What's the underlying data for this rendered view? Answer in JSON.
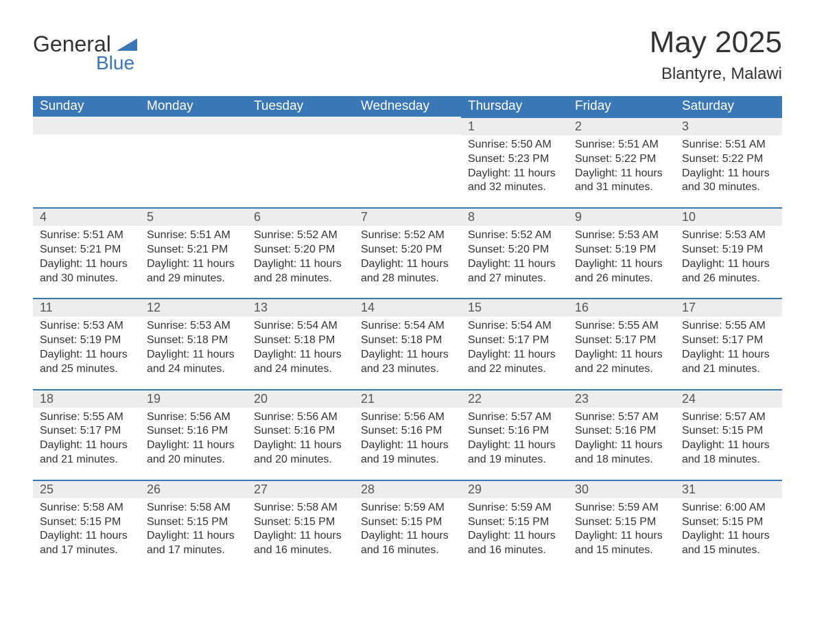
{
  "logo": {
    "primary": "General",
    "secondary": "Blue"
  },
  "title": {
    "month_year": "May 2025",
    "location": "Blantyre, Malawi"
  },
  "colors": {
    "header_bg": "#3a77b7",
    "header_fg": "#ffffff",
    "bar_bg": "#ededed",
    "bar_border": "#3a77b7",
    "text": "#333333",
    "page_bg": "#ffffff"
  },
  "days_of_week": [
    "Sunday",
    "Monday",
    "Tuesday",
    "Wednesday",
    "Thursday",
    "Friday",
    "Saturday"
  ],
  "weeks": [
    [
      null,
      null,
      null,
      null,
      {
        "n": "1",
        "sr": "Sunrise: 5:50 AM",
        "ss": "Sunset: 5:23 PM",
        "dl": "Daylight: 11 hours and 32 minutes."
      },
      {
        "n": "2",
        "sr": "Sunrise: 5:51 AM",
        "ss": "Sunset: 5:22 PM",
        "dl": "Daylight: 11 hours and 31 minutes."
      },
      {
        "n": "3",
        "sr": "Sunrise: 5:51 AM",
        "ss": "Sunset: 5:22 PM",
        "dl": "Daylight: 11 hours and 30 minutes."
      }
    ],
    [
      {
        "n": "4",
        "sr": "Sunrise: 5:51 AM",
        "ss": "Sunset: 5:21 PM",
        "dl": "Daylight: 11 hours and 30 minutes."
      },
      {
        "n": "5",
        "sr": "Sunrise: 5:51 AM",
        "ss": "Sunset: 5:21 PM",
        "dl": "Daylight: 11 hours and 29 minutes."
      },
      {
        "n": "6",
        "sr": "Sunrise: 5:52 AM",
        "ss": "Sunset: 5:20 PM",
        "dl": "Daylight: 11 hours and 28 minutes."
      },
      {
        "n": "7",
        "sr": "Sunrise: 5:52 AM",
        "ss": "Sunset: 5:20 PM",
        "dl": "Daylight: 11 hours and 28 minutes."
      },
      {
        "n": "8",
        "sr": "Sunrise: 5:52 AM",
        "ss": "Sunset: 5:20 PM",
        "dl": "Daylight: 11 hours and 27 minutes."
      },
      {
        "n": "9",
        "sr": "Sunrise: 5:53 AM",
        "ss": "Sunset: 5:19 PM",
        "dl": "Daylight: 11 hours and 26 minutes."
      },
      {
        "n": "10",
        "sr": "Sunrise: 5:53 AM",
        "ss": "Sunset: 5:19 PM",
        "dl": "Daylight: 11 hours and 26 minutes."
      }
    ],
    [
      {
        "n": "11",
        "sr": "Sunrise: 5:53 AM",
        "ss": "Sunset: 5:19 PM",
        "dl": "Daylight: 11 hours and 25 minutes."
      },
      {
        "n": "12",
        "sr": "Sunrise: 5:53 AM",
        "ss": "Sunset: 5:18 PM",
        "dl": "Daylight: 11 hours and 24 minutes."
      },
      {
        "n": "13",
        "sr": "Sunrise: 5:54 AM",
        "ss": "Sunset: 5:18 PM",
        "dl": "Daylight: 11 hours and 24 minutes."
      },
      {
        "n": "14",
        "sr": "Sunrise: 5:54 AM",
        "ss": "Sunset: 5:18 PM",
        "dl": "Daylight: 11 hours and 23 minutes."
      },
      {
        "n": "15",
        "sr": "Sunrise: 5:54 AM",
        "ss": "Sunset: 5:17 PM",
        "dl": "Daylight: 11 hours and 22 minutes."
      },
      {
        "n": "16",
        "sr": "Sunrise: 5:55 AM",
        "ss": "Sunset: 5:17 PM",
        "dl": "Daylight: 11 hours and 22 minutes."
      },
      {
        "n": "17",
        "sr": "Sunrise: 5:55 AM",
        "ss": "Sunset: 5:17 PM",
        "dl": "Daylight: 11 hours and 21 minutes."
      }
    ],
    [
      {
        "n": "18",
        "sr": "Sunrise: 5:55 AM",
        "ss": "Sunset: 5:17 PM",
        "dl": "Daylight: 11 hours and 21 minutes."
      },
      {
        "n": "19",
        "sr": "Sunrise: 5:56 AM",
        "ss": "Sunset: 5:16 PM",
        "dl": "Daylight: 11 hours and 20 minutes."
      },
      {
        "n": "20",
        "sr": "Sunrise: 5:56 AM",
        "ss": "Sunset: 5:16 PM",
        "dl": "Daylight: 11 hours and 20 minutes."
      },
      {
        "n": "21",
        "sr": "Sunrise: 5:56 AM",
        "ss": "Sunset: 5:16 PM",
        "dl": "Daylight: 11 hours and 19 minutes."
      },
      {
        "n": "22",
        "sr": "Sunrise: 5:57 AM",
        "ss": "Sunset: 5:16 PM",
        "dl": "Daylight: 11 hours and 19 minutes."
      },
      {
        "n": "23",
        "sr": "Sunrise: 5:57 AM",
        "ss": "Sunset: 5:16 PM",
        "dl": "Daylight: 11 hours and 18 minutes."
      },
      {
        "n": "24",
        "sr": "Sunrise: 5:57 AM",
        "ss": "Sunset: 5:15 PM",
        "dl": "Daylight: 11 hours and 18 minutes."
      }
    ],
    [
      {
        "n": "25",
        "sr": "Sunrise: 5:58 AM",
        "ss": "Sunset: 5:15 PM",
        "dl": "Daylight: 11 hours and 17 minutes."
      },
      {
        "n": "26",
        "sr": "Sunrise: 5:58 AM",
        "ss": "Sunset: 5:15 PM",
        "dl": "Daylight: 11 hours and 17 minutes."
      },
      {
        "n": "27",
        "sr": "Sunrise: 5:58 AM",
        "ss": "Sunset: 5:15 PM",
        "dl": "Daylight: 11 hours and 16 minutes."
      },
      {
        "n": "28",
        "sr": "Sunrise: 5:59 AM",
        "ss": "Sunset: 5:15 PM",
        "dl": "Daylight: 11 hours and 16 minutes."
      },
      {
        "n": "29",
        "sr": "Sunrise: 5:59 AM",
        "ss": "Sunset: 5:15 PM",
        "dl": "Daylight: 11 hours and 16 minutes."
      },
      {
        "n": "30",
        "sr": "Sunrise: 5:59 AM",
        "ss": "Sunset: 5:15 PM",
        "dl": "Daylight: 11 hours and 15 minutes."
      },
      {
        "n": "31",
        "sr": "Sunrise: 6:00 AM",
        "ss": "Sunset: 5:15 PM",
        "dl": "Daylight: 11 hours and 15 minutes."
      }
    ]
  ]
}
